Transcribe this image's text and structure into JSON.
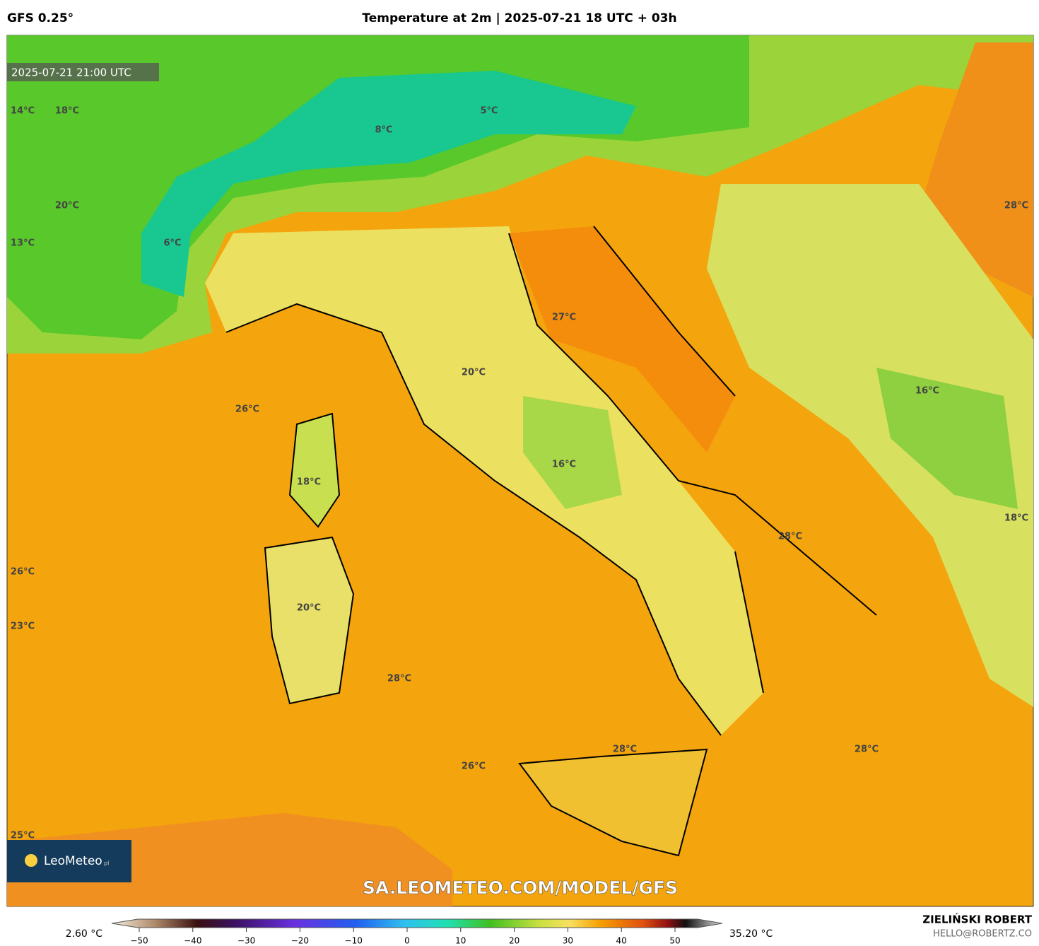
{
  "header": {
    "model": "GFS 0.25°",
    "title": "Temperature at 2m | 2025-07-21 18 UTC + 03h"
  },
  "map": {
    "timestamp": "2025-07-21 21:00 UTC",
    "labels": [
      "14°C",
      "18°C",
      "5°C",
      "8°C",
      "20°C",
      "28°C",
      "13°C",
      "6°C",
      "27°C",
      "20°C",
      "26°C",
      "16°C",
      "16°C",
      "18°C",
      "28°C",
      "18°C",
      "26°C",
      "20°C",
      "23°C",
      "28°C",
      "28°C",
      "28°C",
      "26°C",
      "25°C"
    ],
    "logo": "LeoMeteo",
    "logo_suffix": "pl",
    "watermark": "SA.LEOMETEO.COM/MODEL/GFS"
  },
  "colorbar": {
    "min_label": "2.60 °C",
    "max_label": "35.20 °C",
    "ticks": [
      "−50",
      "−40",
      "−30",
      "−20",
      "−10",
      "0",
      "10",
      "20",
      "30",
      "40",
      "50"
    ]
  },
  "footer": {
    "author": "ZIELIŃSKI ROBERT",
    "email": "HELLO@ROBERTZ.CO"
  }
}
